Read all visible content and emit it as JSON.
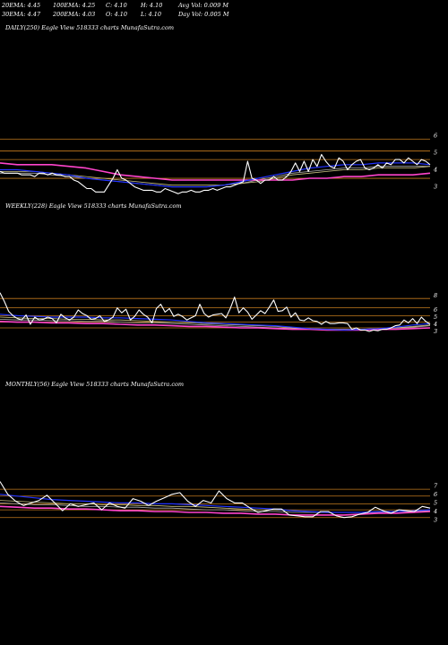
{
  "header": {
    "stats": [
      [
        "20EMA: 4.45",
        "100EMA: 4.25",
        "C: 4.10",
        "H: 4.10",
        "Avg Vol: 0.009 M"
      ],
      [
        "30EMA: 4.47",
        "200EMA: 4.03",
        "O: 4.10",
        "L: 4.10",
        "Day Vol: 0.005 M"
      ]
    ]
  },
  "colors": {
    "background": "#000000",
    "price": "#ffffff",
    "ema_blue": "#2233ff",
    "ema_pink": "#ff44cc",
    "ema_olive": "#c8c080",
    "ema_gray": "#aaaaaa",
    "level_line": "#c27a1e"
  },
  "chart_data": [
    {
      "type": "line",
      "title": "DAILY(250) Eagle  View  518333 charts MunafaSutra.com",
      "y_ticks": [
        "6",
        "5",
        "4",
        "3"
      ],
      "ylim": [
        2.4,
        6.6
      ],
      "levels": [
        5.8,
        5.1,
        4.6,
        3.5
      ],
      "series": [
        {
          "color": "#ffffff",
          "values": [
            3.9,
            3.8,
            3.8,
            3.8,
            3.8,
            3.7,
            3.7,
            3.7,
            3.6,
            3.8,
            3.8,
            3.7,
            3.8,
            3.7,
            3.7,
            3.6,
            3.6,
            3.4,
            3.3,
            3.1,
            2.9,
            2.9,
            2.7,
            2.7,
            2.7,
            3.1,
            3.5,
            4.0,
            3.5,
            3.4,
            3.2,
            3.0,
            2.9,
            2.8,
            2.8,
            2.8,
            2.7,
            2.7,
            2.9,
            2.8,
            2.7,
            2.6,
            2.7,
            2.7,
            2.8,
            2.7,
            2.7,
            2.8,
            2.8,
            2.9,
            2.8,
            2.9,
            3.0,
            3.0,
            3.1,
            3.2,
            3.3,
            4.5,
            3.5,
            3.4,
            3.2,
            3.4,
            3.4,
            3.6,
            3.4,
            3.4,
            3.6,
            3.9,
            4.4,
            3.9,
            4.5,
            3.9,
            4.6,
            4.2,
            4.9,
            4.5,
            4.2,
            4.1,
            4.7,
            4.5,
            4.0,
            4.3,
            4.5,
            4.6,
            4.1,
            4.0,
            4.1,
            4.3,
            4.1,
            4.4,
            4.3,
            4.6,
            4.6,
            4.4,
            4.7,
            4.5,
            4.3,
            4.6,
            4.5,
            4.3
          ]
        },
        {
          "color": "#2233ff",
          "values": [
            4.0,
            4.0,
            3.9,
            3.8,
            3.7,
            3.5,
            3.4,
            3.3,
            3.2,
            3.1,
            3.0,
            3.0,
            3.0,
            3.1,
            3.3,
            3.5,
            3.7,
            3.9,
            4.1,
            4.2,
            4.3,
            4.3,
            4.4,
            4.4,
            4.4,
            4.3
          ]
        },
        {
          "color": "#ff44cc",
          "values": [
            4.4,
            4.3,
            4.3,
            4.3,
            4.2,
            4.1,
            3.9,
            3.7,
            3.6,
            3.5,
            3.4,
            3.4,
            3.4,
            3.4,
            3.4,
            3.4,
            3.4,
            3.4,
            3.5,
            3.5,
            3.6,
            3.6,
            3.7,
            3.7,
            3.7,
            3.8
          ]
        },
        {
          "color": "#c8c080",
          "values": [
            3.9,
            3.9,
            3.9,
            3.8,
            3.7,
            3.6,
            3.5,
            3.4,
            3.3,
            3.2,
            3.1,
            3.1,
            3.1,
            3.1,
            3.2,
            3.3,
            3.5,
            3.7,
            3.8,
            3.9,
            4.0,
            4.0,
            4.1,
            4.1,
            4.1,
            4.2
          ]
        },
        {
          "color": "#aaaaaa",
          "values": [
            3.8,
            3.8,
            3.8,
            3.7,
            3.6,
            3.5,
            3.4,
            3.3,
            3.2,
            3.1,
            3.0,
            3.0,
            3.0,
            3.1,
            3.2,
            3.4,
            3.6,
            3.8,
            3.9,
            4.0,
            4.1,
            4.1,
            4.2,
            4.2,
            4.2,
            4.2
          ]
        }
      ]
    },
    {
      "type": "line",
      "title": "WEEKLY(228) Eagle  View  518333 charts MunafaSutra.com",
      "y_ticks": [
        "8",
        "6",
        "5",
        "4",
        "3"
      ],
      "ylim": [
        1.5,
        9.5
      ],
      "levels": [
        7.6,
        6.3,
        5.2,
        4.3,
        3.5
      ],
      "series": [
        {
          "color": "#ffffff",
          "values": [
            8.4,
            7.2,
            5.8,
            5.2,
            4.8,
            4.6,
            5.3,
            4.0,
            5.0,
            4.6,
            4.7,
            5.0,
            4.8,
            4.2,
            5.4,
            4.9,
            4.6,
            5.0,
            6.0,
            5.5,
            5.2,
            4.7,
            4.8,
            5.2,
            4.4,
            4.6,
            5.0,
            6.3,
            5.6,
            6.1,
            4.6,
            5.1,
            6.0,
            5.4,
            5.0,
            4.2,
            6.2,
            6.8,
            5.7,
            6.2,
            5.1,
            5.4,
            5.1,
            4.6,
            4.9,
            5.2,
            6.8,
            5.5,
            5.0,
            5.3,
            5.4,
            5.5,
            4.9,
            6.2,
            7.8,
            5.6,
            6.3,
            5.7,
            4.7,
            5.3,
            5.9,
            5.5,
            6.4,
            7.4,
            5.8,
            5.9,
            6.4,
            5.0,
            5.6,
            4.6,
            4.5,
            4.9,
            4.5,
            4.4,
            4.0,
            4.4,
            4.1,
            4.1,
            4.2,
            4.2,
            4.1,
            3.3,
            3.5,
            3.2,
            3.2,
            3.0,
            3.2,
            3.1,
            3.3,
            3.3,
            3.5,
            3.8,
            3.9,
            4.6,
            4.2,
            4.8,
            4.1,
            5.0,
            4.4,
            4.0
          ]
        },
        {
          "color": "#2233ff",
          "values": [
            5.4,
            5.2,
            5.1,
            5.0,
            5.0,
            5.0,
            4.9,
            4.9,
            4.8,
            4.7,
            4.6,
            4.4,
            4.2,
            4.1,
            4.0,
            3.9,
            3.8,
            3.6,
            3.4,
            3.3,
            3.2,
            3.3,
            3.4,
            3.6,
            3.9,
            4.1
          ]
        },
        {
          "color": "#ff44cc",
          "values": [
            4.4,
            4.3,
            4.3,
            4.2,
            4.2,
            4.1,
            4.1,
            4.0,
            3.9,
            3.9,
            3.8,
            3.7,
            3.7,
            3.6,
            3.5,
            3.5,
            3.4,
            3.3,
            3.3,
            3.2,
            3.2,
            3.2,
            3.3,
            3.3,
            3.4,
            3.5
          ]
        },
        {
          "color": "#c8c080",
          "values": [
            5.0,
            4.9,
            4.8,
            4.8,
            4.7,
            4.7,
            4.6,
            4.6,
            4.5,
            4.4,
            4.3,
            4.2,
            4.1,
            4.0,
            3.9,
            3.8,
            3.7,
            3.5,
            3.4,
            3.3,
            3.3,
            3.3,
            3.4,
            3.5,
            3.7,
            3.9
          ]
        },
        {
          "color": "#aaaaaa",
          "values": [
            4.7,
            4.6,
            4.6,
            4.5,
            4.5,
            4.4,
            4.4,
            4.3,
            4.2,
            4.2,
            4.1,
            4.0,
            3.9,
            3.8,
            3.7,
            3.6,
            3.5,
            3.4,
            3.4,
            3.3,
            3.3,
            3.3,
            3.4,
            3.5,
            3.6,
            3.8
          ]
        }
      ]
    },
    {
      "type": "line",
      "title": "MONTHLY(56) Eagle  View  518333 charts MunafaSutra.com",
      "y_ticks": [
        "7",
        "6",
        "5",
        "4",
        "3"
      ],
      "ylim": [
        1.5,
        8.8
      ],
      "levels": [
        6.6,
        5.8,
        4.9,
        4.2,
        3.3
      ],
      "series": [
        {
          "color": "#ffffff",
          "values": [
            7.5,
            6.0,
            5.2,
            4.7,
            5.0,
            5.3,
            5.9,
            5.0,
            4.1,
            4.9,
            4.6,
            4.8,
            5.0,
            4.2,
            5.0,
            4.6,
            4.4,
            5.5,
            5.2,
            4.7,
            5.2,
            5.6,
            6.0,
            6.2,
            5.2,
            4.6,
            5.3,
            5.0,
            6.4,
            5.5,
            5.0,
            5.0,
            4.4,
            3.9,
            4.1,
            4.3,
            4.3,
            3.6,
            3.5,
            3.4,
            3.4,
            4.0,
            4.0,
            3.5,
            3.3,
            3.4,
            3.7,
            3.9,
            4.5,
            4.1,
            3.8,
            4.2,
            4.1,
            4.0,
            4.6,
            4.4
          ]
        },
        {
          "color": "#2233ff",
          "values": [
            6.0,
            5.8,
            5.6,
            5.4,
            5.3,
            5.2,
            5.1,
            5.0,
            5.0,
            4.9,
            4.9,
            4.8,
            4.7,
            4.6,
            4.5,
            4.4,
            4.3,
            4.1,
            4.0,
            3.9,
            3.9,
            3.9,
            4.0,
            4.0,
            4.1,
            4.2
          ]
        },
        {
          "color": "#ff44cc",
          "values": [
            4.6,
            4.5,
            4.4,
            4.4,
            4.3,
            4.3,
            4.2,
            4.1,
            4.1,
            4.0,
            4.0,
            3.9,
            3.9,
            3.8,
            3.8,
            3.7,
            3.7,
            3.6,
            3.6,
            3.6,
            3.6,
            3.7,
            3.8,
            3.8,
            3.9,
            4.0
          ]
        },
        {
          "color": "#c8c080",
          "values": [
            5.3,
            5.2,
            5.1,
            5.0,
            4.9,
            4.9,
            4.8,
            4.8,
            4.7,
            4.7,
            4.6,
            4.6,
            4.5,
            4.4,
            4.3,
            4.2,
            4.2,
            4.1,
            4.0,
            3.9,
            3.9,
            3.9,
            4.0,
            4.0,
            4.0,
            4.1
          ]
        },
        {
          "color": "#aaaaaa",
          "values": [
            5.0,
            4.9,
            4.8,
            4.8,
            4.7,
            4.6,
            4.6,
            4.5,
            4.5,
            4.4,
            4.4,
            4.3,
            4.2,
            4.2,
            4.1,
            4.0,
            4.0,
            3.9,
            3.9,
            3.9,
            3.9,
            3.9,
            3.9,
            4.0,
            4.0,
            4.1
          ]
        }
      ]
    }
  ]
}
